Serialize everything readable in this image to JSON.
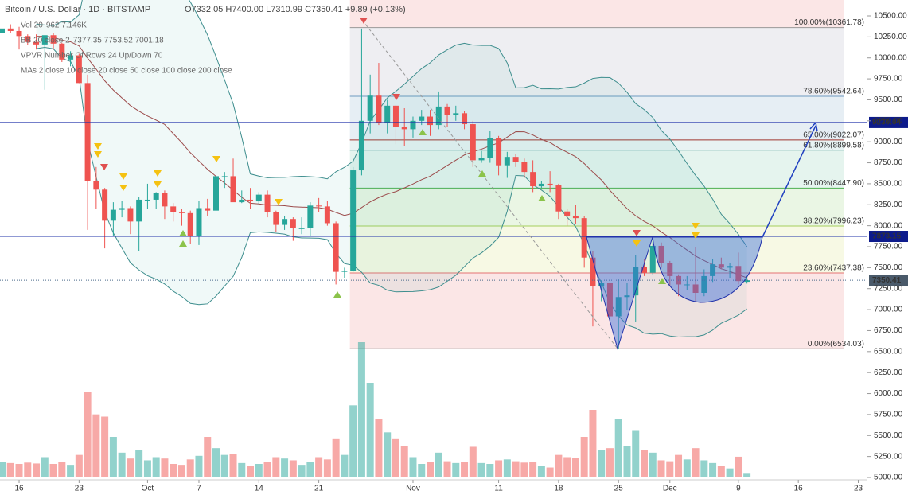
{
  "chart_data": {
    "type": "candlestick",
    "title": "Bitcoin / U.S. Dollar · 1D · BITSTAMP",
    "ohlc_text": "O7332.05 H7400.00 L7310.99 C7350.41 +9.89 (+0.13%)",
    "indicators": [
      {
        "name": "Vol 20",
        "values": "962  7.146K"
      },
      {
        "name": "BB 20 close 2",
        "values": "7377.35  7753.52  7001.18"
      },
      {
        "name": "VPVR Number Of Rows 24 Up/Down 70",
        "values": ""
      },
      {
        "name": "MAs 2 close 10 close 20 close 50 close 100 close 200 close",
        "values": ""
      }
    ],
    "up_color": "#26a69a",
    "down_color": "#ef5350",
    "x": [
      "09-14",
      "09-15",
      "09-16",
      "09-17",
      "09-18",
      "09-19",
      "09-20",
      "09-21",
      "09-22",
      "09-23",
      "09-24",
      "09-25",
      "09-26",
      "09-27",
      "09-28",
      "09-29",
      "09-30",
      "10-01",
      "10-02",
      "10-03",
      "10-04",
      "10-05",
      "10-06",
      "10-07",
      "10-08",
      "10-09",
      "10-10",
      "10-11",
      "10-12",
      "10-13",
      "10-14",
      "10-15",
      "10-16",
      "10-17",
      "10-18",
      "10-19",
      "10-20",
      "10-21",
      "10-22",
      "10-23",
      "10-24",
      "10-25",
      "10-26",
      "10-27",
      "10-28",
      "10-29",
      "10-30",
      "10-31",
      "11-01",
      "11-02",
      "11-03",
      "11-04",
      "11-05",
      "11-06",
      "11-07",
      "11-08",
      "11-09",
      "11-10",
      "11-11",
      "11-12",
      "11-13",
      "11-14",
      "11-15",
      "11-16",
      "11-17",
      "11-18",
      "11-19",
      "11-20",
      "11-21",
      "11-22",
      "11-23",
      "11-24",
      "11-25",
      "11-26",
      "11-27",
      "11-28",
      "11-29",
      "11-30",
      "12-01",
      "12-02",
      "12-03",
      "12-04",
      "12-05",
      "12-06",
      "12-07",
      "12-08",
      "12-09",
      "12-10"
    ],
    "open": [
      10300,
      10350,
      10320,
      10260,
      10190,
      10160,
      10270,
      10170,
      9980,
      10030,
      9700,
      8530,
      8430,
      8060,
      8190,
      8210,
      8050,
      8310,
      8310,
      8390,
      8230,
      8160,
      8150,
      7880,
      8210,
      8180,
      8590,
      8590,
      8280,
      8310,
      8290,
      8370,
      8160,
      8010,
      8080,
      7970,
      7970,
      8240,
      8230,
      8030,
      7450,
      7460,
      8660,
      9250,
      9550,
      9220,
      9430,
      9180,
      9150,
      9250,
      9300,
      9200,
      9420,
      9320,
      9340,
      9210,
      8780,
      8810,
      9040,
      8720,
      8820,
      8760,
      8640,
      8470,
      8500,
      8480,
      8170,
      8120,
      8090,
      7620,
      7280,
      7320,
      6920,
      7150,
      7170,
      7510,
      7440,
      7760,
      7560,
      7400,
      7300,
      7300,
      7200,
      7400,
      7540,
      7500,
      7520,
      7332.05
    ],
    "high": [
      10380,
      10400,
      10370,
      10280,
      10280,
      10250,
      10300,
      10180,
      10080,
      10050,
      9800,
      8700,
      8450,
      8280,
      8300,
      8230,
      8340,
      8500,
      8400,
      8420,
      8270,
      8200,
      8180,
      8300,
      8320,
      8700,
      8640,
      8800,
      8420,
      8450,
      8400,
      8420,
      8180,
      8120,
      8100,
      8100,
      8280,
      8330,
      8300,
      8050,
      7500,
      8700,
      10350,
      9800,
      9940,
      9500,
      9440,
      9400,
      9300,
      9380,
      9380,
      9600,
      9450,
      9430,
      9370,
      9250,
      8890,
      9130,
      9070,
      8880,
      8850,
      8800,
      8780,
      8530,
      8650,
      8500,
      8200,
      8250,
      8120,
      7700,
      7350,
      7350,
      7360,
      7320,
      7650,
      7600,
      7880,
      7800,
      7580,
      7420,
      7400,
      7750,
      7480,
      7600,
      7620,
      7560,
      7680,
      7400
    ],
    "low": [
      10250,
      10300,
      10100,
      10150,
      10100,
      9620,
      10100,
      9950,
      9900,
      9700,
      7950,
      8200,
      7730,
      7880,
      8100,
      7900,
      7700,
      8200,
      8200,
      8080,
      8050,
      8000,
      7780,
      7770,
      8120,
      8120,
      8450,
      8300,
      8270,
      8200,
      8260,
      8100,
      7930,
      7950,
      7820,
      7900,
      7880,
      8160,
      8000,
      7300,
      7380,
      7450,
      8600,
      9100,
      9200,
      9100,
      8970,
      8950,
      9050,
      9200,
      9070,
      9150,
      9180,
      9250,
      9150,
      8700,
      8750,
      8750,
      8600,
      8570,
      8700,
      8570,
      8400,
      8450,
      8400,
      8080,
      8000,
      8020,
      7500,
      6800,
      7100,
      6900,
      6530,
      7000,
      6850,
      7400,
      7420,
      7500,
      7280,
      7160,
      7230,
      7100,
      7160,
      7330,
      7480,
      7380,
      7300,
      7310.99
    ],
    "close": [
      10350,
      10320,
      10260,
      10190,
      10160,
      10270,
      10170,
      9980,
      10030,
      9700,
      8530,
      8430,
      8060,
      8190,
      8210,
      8050,
      8310,
      8310,
      8390,
      8230,
      8160,
      8150,
      7880,
      8210,
      8180,
      8590,
      8590,
      8280,
      8310,
      8290,
      8370,
      8160,
      8010,
      8080,
      7970,
      7970,
      8240,
      8230,
      8030,
      7450,
      7460,
      8660,
      9250,
      9550,
      9220,
      9430,
      9180,
      9150,
      9250,
      9300,
      9200,
      9420,
      9320,
      9340,
      9210,
      8780,
      8810,
      9040,
      8720,
      8820,
      8760,
      8640,
      8470,
      8500,
      8480,
      8170,
      8120,
      8090,
      7620,
      7280,
      7320,
      6920,
      7150,
      7170,
      7510,
      7440,
      7760,
      7560,
      7400,
      7300,
      7300,
      7200,
      7400,
      7540,
      7500,
      7520,
      7340.52,
      7350.41
    ],
    "volume": [
      3500,
      3200,
      3000,
      3300,
      3100,
      4500,
      3000,
      3400,
      2800,
      5000,
      19000,
      14000,
      13500,
      9000,
      5500,
      4200,
      6000,
      3800,
      4500,
      4200,
      3000,
      2800,
      4000,
      4800,
      9000,
      6500,
      5000,
      5200,
      3200,
      2600,
      3000,
      3500,
      4500,
      4200,
      3800,
      2800,
      3500,
      4500,
      4000,
      8500,
      5000,
      16000,
      30000,
      21000,
      13000,
      10000,
      8500,
      7000,
      4500,
      3000,
      3500,
      5500,
      3600,
      3200,
      3400,
      6800,
      3200,
      3000,
      3800,
      4000,
      3600,
      3300,
      3500,
      2600,
      2200,
      5000,
      4500,
      4400,
      9000,
      15000,
      6000,
      6500,
      13000,
      7000,
      10500,
      6000,
      5500,
      3800,
      3600,
      5000,
      4000,
      6500,
      3800,
      3200,
      2600,
      2000,
      4600,
      1000
    ],
    "xticks": [
      {
        "value": "09-16",
        "label": "16"
      },
      {
        "value": "09-23",
        "label": "23"
      },
      {
        "value": "10-01",
        "label": "Oct"
      },
      {
        "value": "10-07",
        "label": "7"
      },
      {
        "value": "10-14",
        "label": "14"
      },
      {
        "value": "10-21",
        "label": "21"
      },
      {
        "value": "11-01",
        "label": "Nov"
      },
      {
        "value": "11-11",
        "label": "11"
      },
      {
        "value": "11-18",
        "label": "18"
      },
      {
        "value": "11-25",
        "label": "25"
      },
      {
        "value": "12-01",
        "label": "Dec"
      },
      {
        "value": "12-09",
        "label": "9"
      },
      {
        "value": "12-16",
        "label": "16"
      },
      {
        "value": "12-23",
        "label": "23"
      }
    ],
    "ylim": [
      5000,
      10500
    ],
    "yticks": [
      {
        "value": 5000,
        "label": "5000.00"
      },
      {
        "value": 5250,
        "label": "5250.00"
      },
      {
        "value": 5500,
        "label": "5500.00"
      },
      {
        "value": 5750,
        "label": "5750.00"
      },
      {
        "value": 6000,
        "label": "6000.00"
      },
      {
        "value": 6250,
        "label": "6250.00"
      },
      {
        "value": 6500,
        "label": "6500.00"
      },
      {
        "value": 6750,
        "label": "6750.00"
      },
      {
        "value": 7000,
        "label": "7000.00"
      },
      {
        "value": 7250,
        "label": "7250.00"
      },
      {
        "value": 7500,
        "label": "7500.00"
      },
      {
        "value": 7750,
        "label": "7750.00"
      },
      {
        "value": 8000,
        "label": "8000.00"
      },
      {
        "value": 8250,
        "label": "8250.00"
      },
      {
        "value": 8500,
        "label": "8500.00"
      },
      {
        "value": 8750,
        "label": "8750.00"
      },
      {
        "value": 9000,
        "label": "9000.00"
      },
      {
        "value": 9250,
        "label": "9250.00"
      },
      {
        "value": 9500,
        "label": "9500.00"
      },
      {
        "value": 9750,
        "label": "9750.00"
      },
      {
        "value": 10000,
        "label": "10000.00"
      },
      {
        "value": 10250,
        "label": "10250.00"
      },
      {
        "value": 10500,
        "label": "10500.00"
      }
    ],
    "fib": [
      {
        "label": "0.00%(6534.03)",
        "value": 6534.03,
        "color": "#999999",
        "fill": "#fbe6e6"
      },
      {
        "label": "23.60%(7437.38)",
        "value": 7437.38,
        "color": "#e57373",
        "fill": "#f7f9e4"
      },
      {
        "label": "38.20%(7996.23)",
        "value": 7996.23,
        "color": "#a5cf5b",
        "fill": "#eaf6e4"
      },
      {
        "label": "50.00%(8447.90)",
        "value": 8447.9,
        "color": "#4caf50",
        "fill": "#e5f4ee"
      },
      {
        "label": "61.80%(8899.58)",
        "value": 8899.58,
        "color": "#6aa7a7",
        "fill": "#e8f3f3"
      },
      {
        "label": "65.00%(9022.07)",
        "value": 9022.07,
        "color": "#a0362f",
        "fill": "#e6eef4"
      },
      {
        "label": "78.60%(9542.64)",
        "value": 9542.64,
        "color": "#6e9bc0",
        "fill": "#eeeef2"
      },
      {
        "label": "100.00%(10361.78)",
        "value": 10361.78,
        "color": "#999999",
        "fill": "#fbe6e6"
      }
    ],
    "lines": [
      {
        "value": 9230.04,
        "label": "9230.04",
        "color": "#2233aa",
        "style": "solid"
      },
      {
        "value": 7873.15,
        "label": "7873.15",
        "color": "#2233aa",
        "style": "solid"
      },
      {
        "value": 7350.41,
        "label": "7350.41",
        "color": "#4a6a8a",
        "style": "dotted"
      }
    ]
  }
}
